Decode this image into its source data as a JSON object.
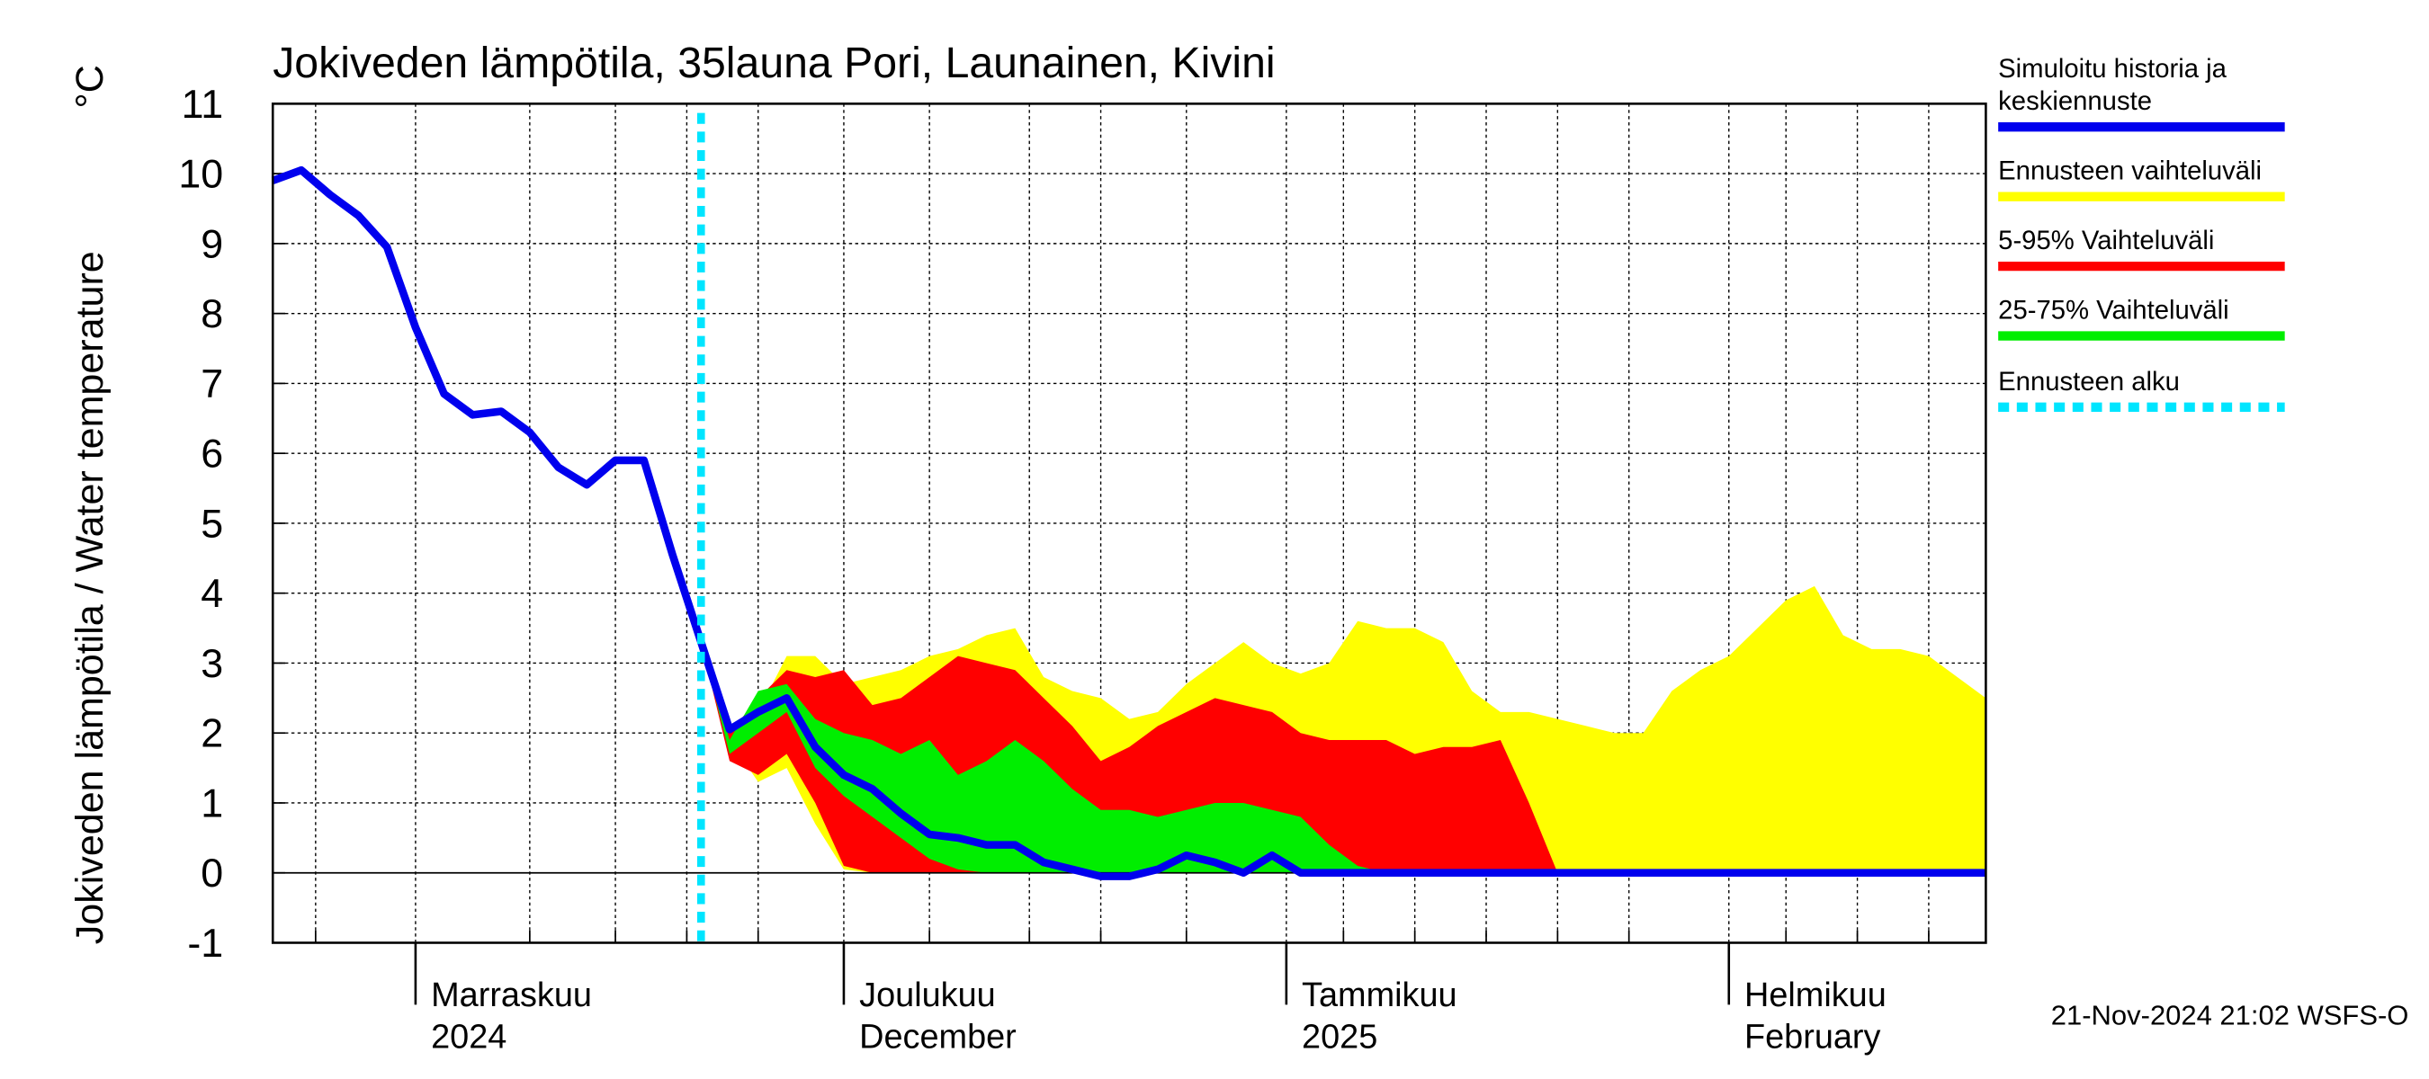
{
  "chart_data": {
    "type": "line",
    "title": "Jokiveden lämpötila, 35launa Pori, Launainen, Kivini",
    "ylabel": "Jokiveden lämpötila / Water temperature",
    "yunit": "°C",
    "footer": "21-Nov-2024 21:02 WSFS-O",
    "xlim": [
      -10,
      110
    ],
    "ylim": [
      -1,
      11
    ],
    "yticks": [
      -1,
      0,
      1,
      2,
      3,
      4,
      5,
      6,
      7,
      8,
      9,
      10,
      11
    ],
    "xticks": [
      {
        "value": 0,
        "label": "Marraskuu"
      },
      {
        "value": 30,
        "label": "Joulukuu"
      },
      {
        "value": 61,
        "label": "Tammikuu"
      },
      {
        "value": 92,
        "label": "Helmikuu"
      }
    ],
    "xtick_sublabels": [
      "2024",
      "December",
      "2025",
      "February"
    ],
    "xgrid": [
      -7,
      8,
      14,
      19,
      24,
      36,
      43,
      48,
      54,
      65,
      70,
      75,
      80,
      85,
      96,
      101,
      106
    ],
    "grid": true,
    "forecast_start": 20,
    "forecast_name": "Ennusteen alku",
    "forecast_color": "#00e5ff",
    "x": [
      -10,
      -8,
      -6,
      -4,
      -2,
      0,
      2,
      4,
      6,
      8,
      10,
      12,
      14,
      16,
      18,
      20,
      22,
      24,
      26,
      28,
      30,
      32,
      34,
      36,
      38,
      40,
      42,
      44,
      46,
      48,
      50,
      52,
      54,
      56,
      58,
      60,
      62,
      64,
      66,
      68,
      70,
      72,
      74,
      76,
      78,
      80,
      82,
      84,
      86,
      88,
      90,
      92,
      94,
      96,
      98,
      100,
      102,
      104,
      106,
      108,
      110
    ],
    "series": [
      {
        "name": "Simuloitu historia ja keskiennuste",
        "color": "#0000ee",
        "values": [
          9.9,
          10.05,
          9.7,
          9.4,
          8.95,
          7.8,
          6.85,
          6.55,
          6.6,
          6.3,
          5.8,
          5.55,
          5.9,
          5.9,
          4.55,
          3.3,
          2.05,
          2.3,
          2.5,
          1.8,
          1.4,
          1.2,
          0.85,
          0.55,
          0.5,
          0.4,
          0.4,
          0.15,
          0.05,
          -0.05,
          -0.05,
          0.05,
          0.25,
          0.15,
          0,
          0.25,
          0,
          0,
          0,
          0,
          0,
          0,
          0,
          0,
          0,
          0,
          0,
          0,
          0,
          0,
          0,
          0,
          0,
          0,
          0,
          0,
          0,
          0,
          0,
          0,
          0
        ]
      },
      {
        "name": "Ennusteen vaihteluväli",
        "color": "#ffff00",
        "upper": [
          null,
          null,
          null,
          null,
          null,
          null,
          null,
          null,
          null,
          null,
          null,
          null,
          null,
          null,
          null,
          3.3,
          2.0,
          2.3,
          3.1,
          3.1,
          2.7,
          2.8,
          2.9,
          3.1,
          3.2,
          3.4,
          3.5,
          2.8,
          2.6,
          2.5,
          2.2,
          2.3,
          2.7,
          3.0,
          3.3,
          3.0,
          2.85,
          3.0,
          3.6,
          3.5,
          3.5,
          3.3,
          2.6,
          2.3,
          2.3,
          2.2,
          2.1,
          2.0,
          2.0,
          2.6,
          2.9,
          3.1,
          3.5,
          3.9,
          4.1,
          3.4,
          3.2,
          3.2,
          3.1,
          2.8,
          2.5
        ],
        "lower": [
          null,
          null,
          null,
          null,
          null,
          null,
          null,
          null,
          null,
          null,
          null,
          null,
          null,
          null,
          null,
          3.3,
          1.9,
          1.3,
          1.5,
          0.7,
          0.05,
          0,
          0,
          0,
          0,
          0,
          0,
          0,
          0,
          0,
          0,
          0,
          0,
          0,
          0,
          0,
          0,
          0,
          0,
          0,
          0,
          0,
          0,
          0,
          0,
          0,
          0,
          0,
          0,
          0,
          0,
          0,
          0,
          0,
          0,
          0,
          0,
          0,
          0,
          0,
          0
        ]
      },
      {
        "name": "5-95% Vaihteluväli",
        "color": "#ff0000",
        "upper": [
          null,
          null,
          null,
          null,
          null,
          null,
          null,
          null,
          null,
          null,
          null,
          null,
          null,
          null,
          null,
          3.3,
          2.0,
          2.5,
          2.9,
          2.8,
          2.9,
          2.4,
          2.5,
          2.8,
          3.1,
          3.0,
          2.9,
          2.5,
          2.1,
          1.6,
          1.8,
          2.1,
          2.3,
          2.5,
          2.4,
          2.3,
          2.0,
          1.9,
          1.9,
          1.9,
          1.7,
          1.8,
          1.8,
          1.9,
          1.0,
          0,
          null,
          null,
          null,
          null,
          null,
          null,
          null,
          null,
          null,
          null,
          null,
          null,
          null,
          null,
          null
        ],
        "lower": [
          null,
          null,
          null,
          null,
          null,
          null,
          null,
          null,
          null,
          null,
          null,
          null,
          null,
          null,
          null,
          3.3,
          1.6,
          1.4,
          1.7,
          1.0,
          0.1,
          0,
          0,
          0,
          0,
          0,
          0,
          0,
          0,
          0,
          0,
          0,
          0,
          0,
          0,
          0,
          0,
          0,
          0,
          0,
          0,
          0,
          0,
          0,
          0,
          0,
          null,
          null,
          null,
          null,
          null,
          null,
          null,
          null,
          null,
          null,
          null,
          null,
          null,
          null,
          null
        ]
      },
      {
        "name": "25-75% Vaihteluväli",
        "color": "#00ee00",
        "upper": [
          null,
          null,
          null,
          null,
          null,
          null,
          null,
          null,
          null,
          null,
          null,
          null,
          null,
          null,
          null,
          3.3,
          1.9,
          2.6,
          2.7,
          2.2,
          2.0,
          1.9,
          1.7,
          1.9,
          1.4,
          1.6,
          1.9,
          1.6,
          1.2,
          0.9,
          0.9,
          0.8,
          0.9,
          1.0,
          1.0,
          0.9,
          0.8,
          0.4,
          0.1,
          0,
          null,
          null,
          null,
          null,
          null,
          null,
          null,
          null,
          null,
          null,
          null,
          null,
          null,
          null,
          null,
          null,
          null,
          null,
          null,
          null,
          null
        ],
        "lower": [
          null,
          null,
          null,
          null,
          null,
          null,
          null,
          null,
          null,
          null,
          null,
          null,
          null,
          null,
          null,
          3.3,
          1.7,
          2.0,
          2.3,
          1.5,
          1.1,
          0.8,
          0.5,
          0.2,
          0.05,
          0,
          0,
          0,
          0,
          0,
          0,
          0,
          0,
          0,
          0,
          0,
          0,
          0,
          0,
          0,
          null,
          null,
          null,
          null,
          null,
          null,
          null,
          null,
          null,
          null,
          null,
          null,
          null,
          null,
          null,
          null,
          null,
          null,
          null,
          null,
          null
        ]
      }
    ]
  }
}
